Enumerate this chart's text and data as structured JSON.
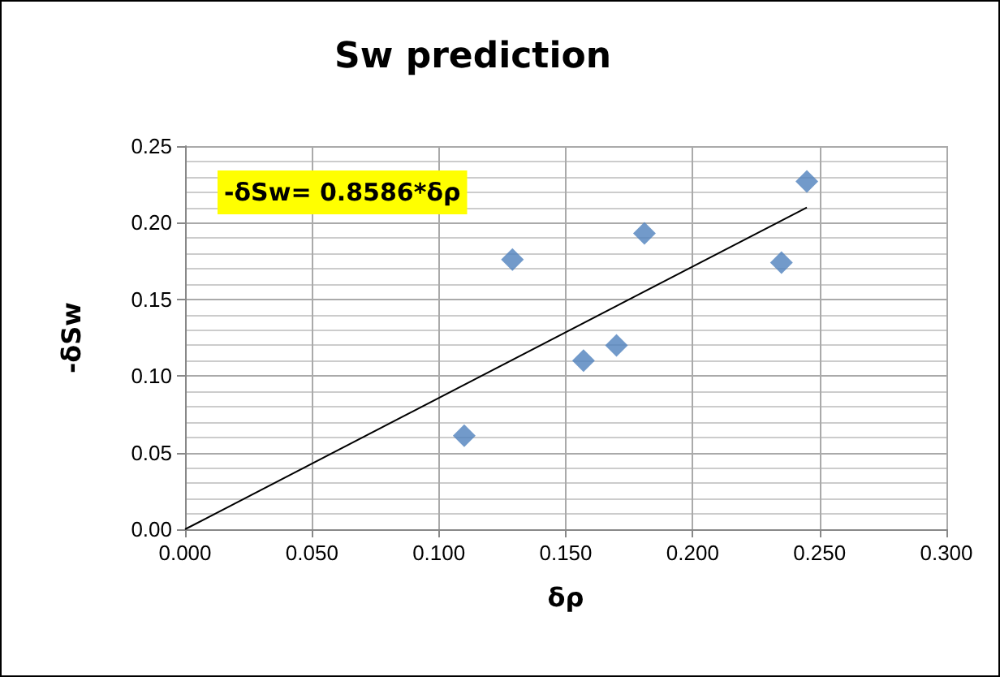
{
  "chart_data": {
    "type": "scatter",
    "title": "Sw prediction",
    "xlabel": "δρ",
    "ylabel": "-δSw",
    "annotations": [
      "-δSw= 0.8586*δρ"
    ],
    "series": [
      {
        "color": "#4f81bd",
        "x": [
          0.11,
          0.129,
          0.157,
          0.17,
          0.181,
          0.235,
          0.245
        ],
        "values": [
          0.061,
          0.176,
          0.11,
          0.12,
          0.193,
          0.174,
          0.227
        ]
      },
      {
        "type": "line",
        "color": "#000000",
        "x": [
          0,
          0.245
        ],
        "values": [
          0,
          0.21
        ],
        "marker": "none"
      }
    ],
    "marker": "diamond",
    "xlim": [
      0,
      0.3
    ],
    "ylim": [
      0,
      0.25
    ],
    "xticks": [
      {
        "value": 0,
        "label": "0.000"
      },
      {
        "value": 0.05,
        "label": "0.050"
      },
      {
        "value": 0.1,
        "label": "0.100"
      },
      {
        "value": 0.15,
        "label": "0.150"
      },
      {
        "value": 0.2,
        "label": "0.200"
      },
      {
        "value": 0.25,
        "label": "0.250"
      },
      {
        "value": 0.3,
        "label": "0.300"
      }
    ],
    "yticks": [
      {
        "value": 0,
        "label": "0.00"
      },
      {
        "value": 0.05,
        "label": "0.05"
      },
      {
        "value": 0.1,
        "label": "0.10"
      },
      {
        "value": 0.15,
        "label": "0.15"
      },
      {
        "value": 0.2,
        "label": "0.20"
      },
      {
        "value": 0.25,
        "label": "0.25"
      }
    ],
    "grid": true
  }
}
